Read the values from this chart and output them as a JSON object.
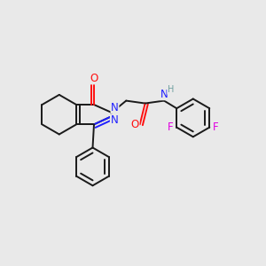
{
  "bg_color": "#e9e9e9",
  "bond_color": "#1a1a1a",
  "bond_width": 1.4,
  "atom_colors": {
    "N": "#2020ff",
    "O": "#ff1010",
    "H": "#70a0a0",
    "F": "#e000e0",
    "C": "#1a1a1a"
  },
  "font_size": 8.5,
  "fig_width": 3.0,
  "fig_height": 3.0,
  "dpi": 100,
  "scale": 1.0
}
